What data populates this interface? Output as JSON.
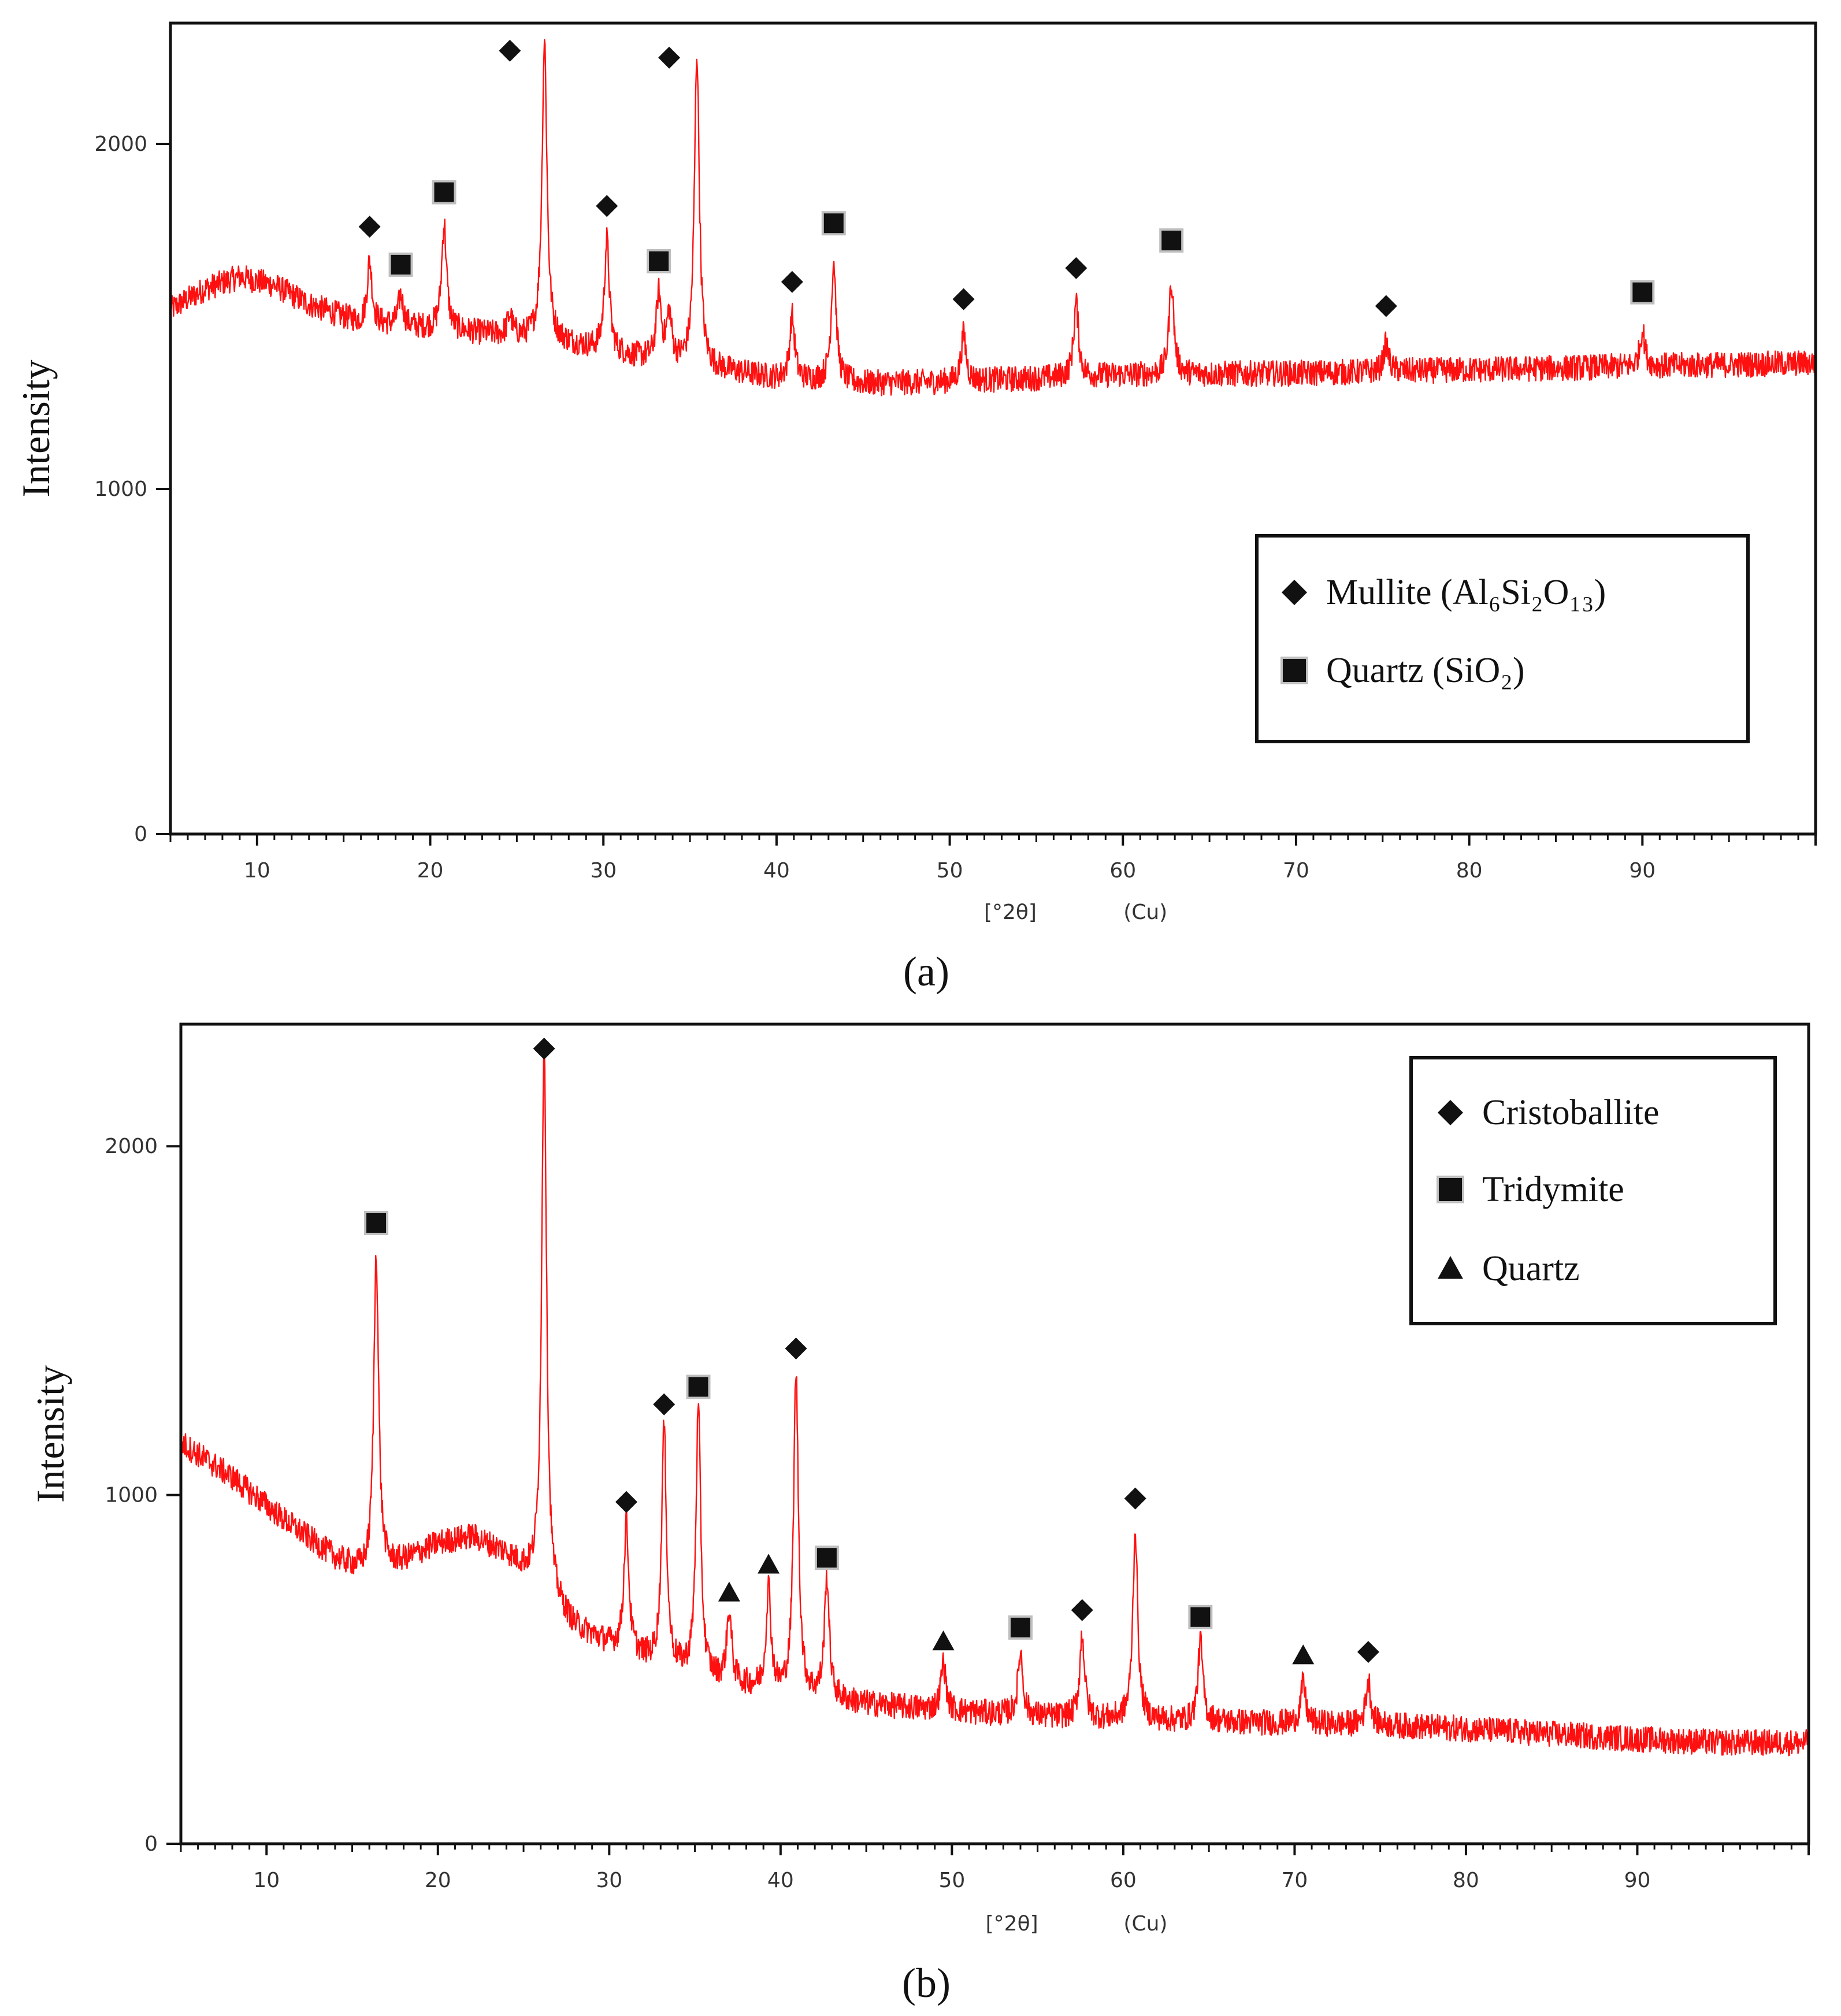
{
  "colors": {
    "trace": "#ff1010",
    "axis": "#111111",
    "tick_text": "#333333",
    "marker": "#111111",
    "marker_halo": "#bfbfbf",
    "background": "#ffffff"
  },
  "chart_data": [
    {
      "id": "a",
      "type": "line",
      "caption": "(a)",
      "ylabel": "Intensity",
      "xlabel": "[°2θ]",
      "xlabel_unit": "(Cu)",
      "xlim": [
        5,
        100
      ],
      "ylim": [
        0,
        2350
      ],
      "xticks": [
        10,
        20,
        30,
        40,
        50,
        60,
        70,
        80,
        90
      ],
      "yticks": [
        0,
        1000,
        2000
      ],
      "legend_position": "center-right",
      "legend": [
        {
          "marker": "diamond",
          "label": "Mullite (Al₆Si₂O₁₃)"
        },
        {
          "marker": "square",
          "label": "Quartz (SiO₂)"
        }
      ],
      "baseline": [
        [
          5,
          1520
        ],
        [
          7,
          1580
        ],
        [
          9,
          1615
        ],
        [
          11,
          1590
        ],
        [
          13,
          1535
        ],
        [
          16,
          1480
        ],
        [
          20,
          1465
        ],
        [
          25,
          1440
        ],
        [
          28,
          1420
        ],
        [
          32,
          1380
        ],
        [
          36,
          1350
        ],
        [
          40,
          1320
        ],
        [
          45,
          1305
        ],
        [
          50,
          1310
        ],
        [
          55,
          1320
        ],
        [
          60,
          1330
        ],
        [
          70,
          1335
        ],
        [
          80,
          1345
        ],
        [
          90,
          1355
        ],
        [
          100,
          1365
        ]
      ],
      "peaks": [
        {
          "x": 16.5,
          "y": 1660,
          "phase": "Mullite",
          "marker": "diamond",
          "label_y": 1760
        },
        {
          "x": 18.3,
          "y": 1560,
          "phase": "Quartz",
          "marker": "square",
          "label_y": 1650
        },
        {
          "x": 20.8,
          "y": 1770,
          "phase": "Quartz",
          "marker": "square",
          "label_y": 1860
        },
        {
          "x": 24.6,
          "y": 1500,
          "phase": "Mullite",
          "marker": "diamond",
          "label_y": 2270
        },
        {
          "x": 26.6,
          "y": 2300,
          "phase": "Quartz",
          "marker": "none",
          "label_y": 0
        },
        {
          "x": 30.2,
          "y": 1720,
          "phase": "Mullite",
          "marker": "diamond",
          "label_y": 1820
        },
        {
          "x": 33.2,
          "y": 1560,
          "phase": "Quartz",
          "marker": "square",
          "label_y": 1660
        },
        {
          "x": 33.8,
          "y": 1500,
          "phase": "Mullite",
          "marker": "diamond",
          "label_y": 2250
        },
        {
          "x": 35.4,
          "y": 2260,
          "phase": "Mullite",
          "marker": "none",
          "label_y": 0
        },
        {
          "x": 40.9,
          "y": 1500,
          "phase": "Mullite",
          "marker": "diamond",
          "label_y": 1600
        },
        {
          "x": 43.3,
          "y": 1660,
          "phase": "Quartz",
          "marker": "square",
          "label_y": 1770
        },
        {
          "x": 50.8,
          "y": 1450,
          "phase": "Mullite",
          "marker": "diamond",
          "label_y": 1550
        },
        {
          "x": 57.3,
          "y": 1540,
          "phase": "Mullite",
          "marker": "diamond",
          "label_y": 1640
        },
        {
          "x": 62.8,
          "y": 1600,
          "phase": "Quartz",
          "marker": "square",
          "label_y": 1720
        },
        {
          "x": 75.2,
          "y": 1420,
          "phase": "Mullite",
          "marker": "diamond",
          "label_y": 1530
        },
        {
          "x": 90.0,
          "y": 1460,
          "phase": "Quartz",
          "marker": "square",
          "label_y": 1570
        }
      ]
    },
    {
      "id": "b",
      "type": "line",
      "caption": "(b)",
      "ylabel": "Intensity",
      "xlabel": "[°2θ]",
      "xlabel_unit": "(Cu)",
      "xlim": [
        5,
        100
      ],
      "ylim": [
        0,
        2350
      ],
      "xticks": [
        10,
        20,
        30,
        40,
        50,
        60,
        70,
        80,
        90
      ],
      "yticks": [
        0,
        1000,
        2000
      ],
      "legend_position": "top-right",
      "legend": [
        {
          "marker": "diamond",
          "label": "Cristoballite"
        },
        {
          "marker": "square",
          "label": "Tridymite"
        },
        {
          "marker": "triangle",
          "label": "Quartz"
        }
      ],
      "baseline": [
        [
          5,
          1150
        ],
        [
          8,
          1050
        ],
        [
          11,
          930
        ],
        [
          14,
          820
        ],
        [
          16,
          770
        ],
        [
          18,
          810
        ],
        [
          20,
          860
        ],
        [
          22,
          880
        ],
        [
          24,
          830
        ],
        [
          25.5,
          760
        ],
        [
          28,
          620
        ],
        [
          30,
          570
        ],
        [
          33,
          510
        ],
        [
          36,
          470
        ],
        [
          40,
          430
        ],
        [
          45,
          400
        ],
        [
          50,
          380
        ],
        [
          55,
          365
        ],
        [
          60,
          355
        ],
        [
          65,
          350
        ],
        [
          70,
          345
        ],
        [
          75,
          340
        ],
        [
          80,
          330
        ],
        [
          85,
          315
        ],
        [
          90,
          300
        ],
        [
          95,
          290
        ],
        [
          100,
          290
        ]
      ],
      "peaks": [
        {
          "x": 16.4,
          "y": 1700,
          "phase": "Tridymite",
          "marker": "square",
          "label_y": 1780
        },
        {
          "x": 26.2,
          "y": 2310,
          "phase": "Cristoballite",
          "marker": "diamond",
          "label_y": 2280
        },
        {
          "x": 31.0,
          "y": 920,
          "phase": "Cristoballite",
          "marker": "diamond",
          "label_y": 980
        },
        {
          "x": 33.2,
          "y": 1190,
          "phase": "Cristoballite",
          "marker": "diamond",
          "label_y": 1260
        },
        {
          "x": 35.2,
          "y": 1240,
          "phase": "Tridymite",
          "marker": "square",
          "label_y": 1310
        },
        {
          "x": 37.0,
          "y": 660,
          "phase": "Quartz",
          "marker": "triangle",
          "label_y": 720
        },
        {
          "x": 39.3,
          "y": 730,
          "phase": "Quartz",
          "marker": "triangle",
          "label_y": 800
        },
        {
          "x": 40.9,
          "y": 1350,
          "phase": "Cristoballite",
          "marker": "diamond",
          "label_y": 1420
        },
        {
          "x": 42.7,
          "y": 760,
          "phase": "Tridymite",
          "marker": "square",
          "label_y": 820
        },
        {
          "x": 49.5,
          "y": 520,
          "phase": "Quartz",
          "marker": "triangle",
          "label_y": 580
        },
        {
          "x": 54.0,
          "y": 550,
          "phase": "Tridymite",
          "marker": "square",
          "label_y": 620
        },
        {
          "x": 57.6,
          "y": 600,
          "phase": "Cristoballite",
          "marker": "diamond",
          "label_y": 670
        },
        {
          "x": 60.7,
          "y": 900,
          "phase": "Cristoballite",
          "marker": "diamond",
          "label_y": 990
        },
        {
          "x": 64.5,
          "y": 580,
          "phase": "Tridymite",
          "marker": "square",
          "label_y": 650
        },
        {
          "x": 70.5,
          "y": 460,
          "phase": "Quartz",
          "marker": "triangle",
          "label_y": 540
        },
        {
          "x": 74.3,
          "y": 470,
          "phase": "Cristoballite",
          "marker": "diamond",
          "label_y": 550
        }
      ]
    }
  ]
}
